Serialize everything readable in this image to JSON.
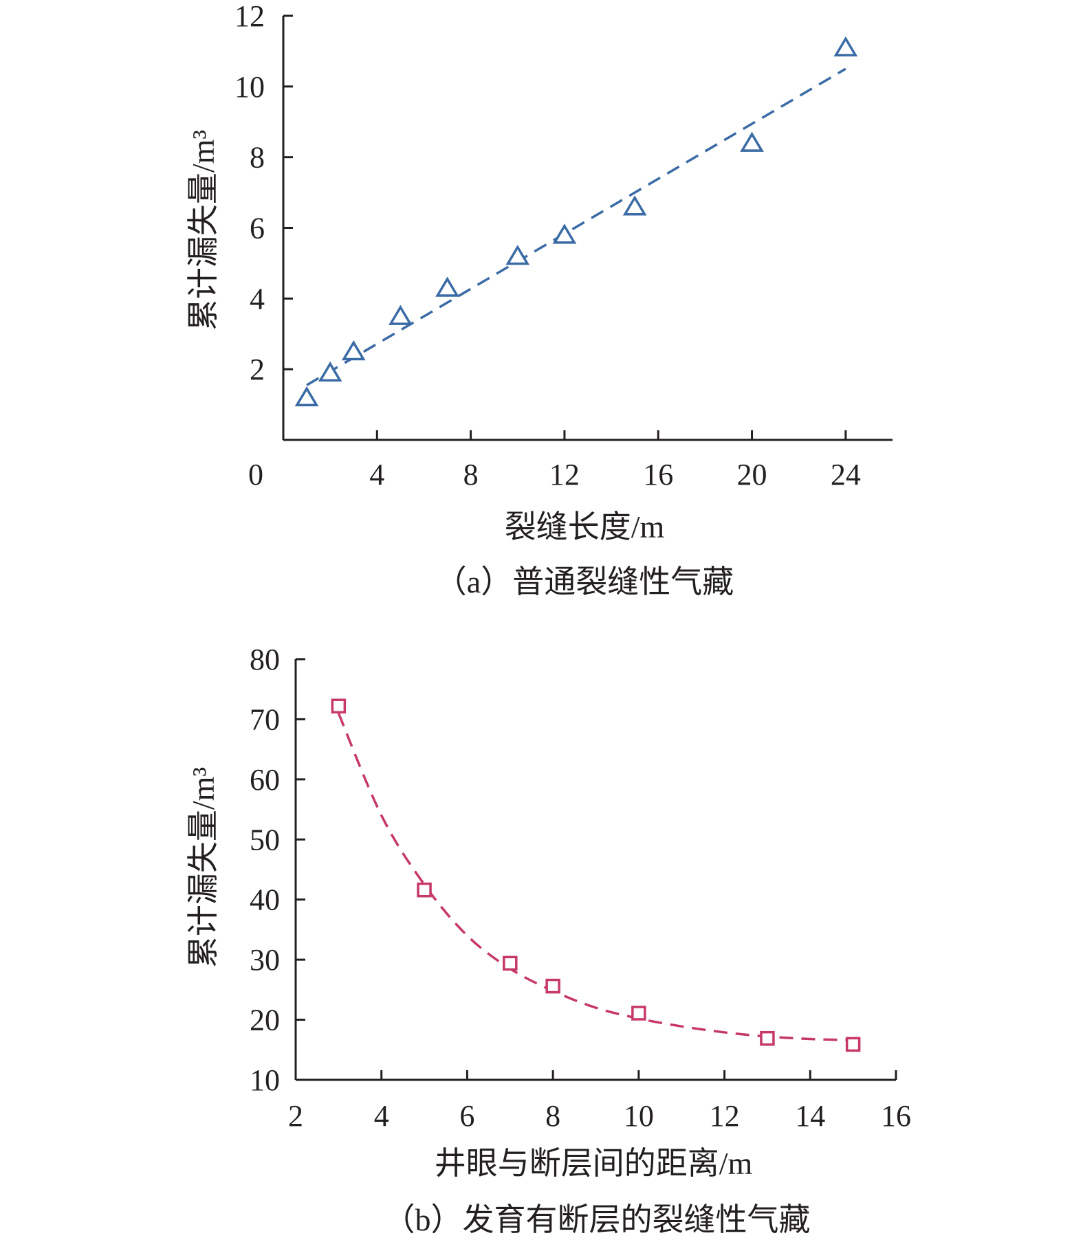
{
  "chart_data": [
    {
      "type": "scatter",
      "title": "",
      "caption": "（a）普通裂缝性气藏",
      "xlabel": "裂缝长度/m",
      "ylabel": "累计漏失量/m³",
      "x_ticks": [
        "0",
        "4",
        "8",
        "12",
        "16",
        "20",
        "24"
      ],
      "y_ticks": [
        "2",
        "4",
        "6",
        "8",
        "10",
        "12"
      ],
      "xlim": [
        0,
        26
      ],
      "ylim": [
        0,
        12
      ],
      "grid": false,
      "color": "#3a6ba5",
      "marker": "triangle",
      "points": [
        {
          "x": 1,
          "y": 1.2
        },
        {
          "x": 2,
          "y": 1.9
        },
        {
          "x": 3,
          "y": 2.5
        },
        {
          "x": 5,
          "y": 3.5
        },
        {
          "x": 7,
          "y": 4.3
        },
        {
          "x": 10,
          "y": 5.2
        },
        {
          "x": 12,
          "y": 5.8
        },
        {
          "x": 15,
          "y": 6.6
        },
        {
          "x": 20,
          "y": 8.4
        },
        {
          "x": 24,
          "y": 11.1
        }
      ],
      "fit_line": {
        "style": "dashed",
        "x": [
          1,
          24
        ],
        "y": [
          1.55,
          10.5
        ]
      }
    },
    {
      "type": "scatter",
      "title": "",
      "caption": "（b）发育有断层的裂缝性气藏",
      "xlabel": "井眼与断层间的距离/m",
      "ylabel": "累计漏失量/m³",
      "x_ticks": [
        "2",
        "4",
        "6",
        "8",
        "10",
        "12",
        "14",
        "16"
      ],
      "y_ticks": [
        "10",
        "20",
        "30",
        "40",
        "50",
        "60",
        "70",
        "80"
      ],
      "xlim": [
        2,
        16
      ],
      "ylim": [
        10,
        80
      ],
      "grid": false,
      "color": "#c7386a",
      "marker": "square",
      "points": [
        {
          "x": 3,
          "y": 72.2
        },
        {
          "x": 5,
          "y": 41.6
        },
        {
          "x": 7,
          "y": 29.4
        },
        {
          "x": 8,
          "y": 25.6
        },
        {
          "x": 10,
          "y": 21.1
        },
        {
          "x": 13,
          "y": 16.9
        },
        {
          "x": 15,
          "y": 15.9
        }
      ],
      "fit_curve": {
        "style": "dashed",
        "points": [
          {
            "x": 3,
            "y": 71
          },
          {
            "x": 4,
            "y": 54
          },
          {
            "x": 5,
            "y": 42.5
          },
          {
            "x": 6,
            "y": 34
          },
          {
            "x": 7,
            "y": 28.5
          },
          {
            "x": 8,
            "y": 24.8
          },
          {
            "x": 9,
            "y": 22
          },
          {
            "x": 10,
            "y": 20.2
          },
          {
            "x": 11,
            "y": 18.9
          },
          {
            "x": 12,
            "y": 17.9
          },
          {
            "x": 13,
            "y": 17.2
          },
          {
            "x": 14,
            "y": 16.8
          },
          {
            "x": 15,
            "y": 16.6
          }
        ]
      }
    }
  ]
}
